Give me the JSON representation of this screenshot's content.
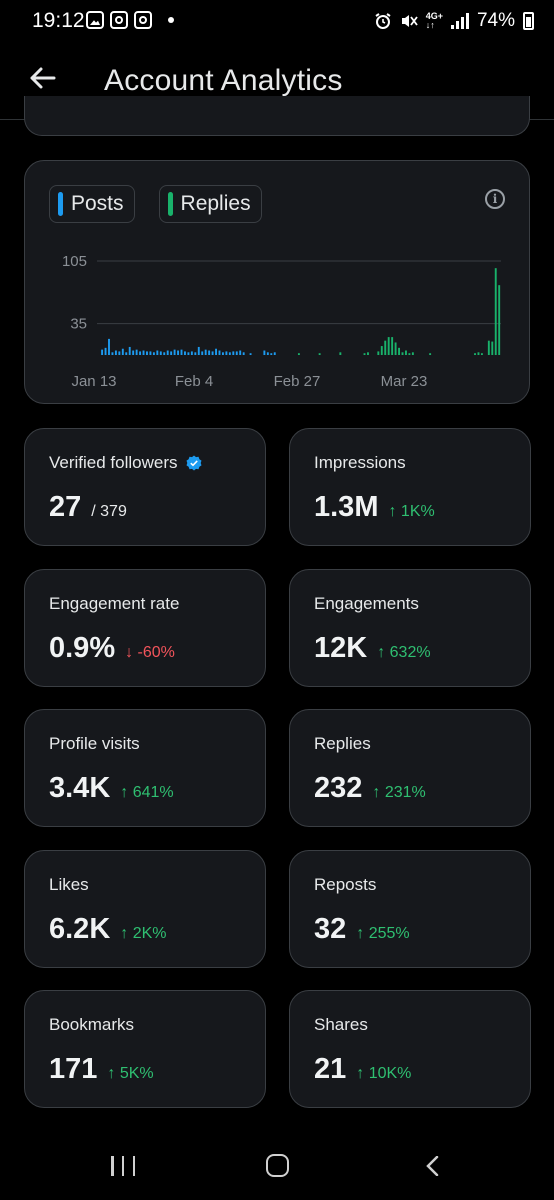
{
  "status_bar": {
    "time": "19:12",
    "network": "4G+",
    "battery": "74%",
    "icons": [
      "gallery-icon",
      "instagram-icon",
      "instagram-icon",
      "notification-dot",
      "alarm-icon",
      "mute-icon",
      "network-icon",
      "signal-icon",
      "battery-icon"
    ]
  },
  "header": {
    "title": "Account Analytics",
    "back_icon": "arrow-left-icon"
  },
  "chart": {
    "legend": [
      {
        "label": "Posts",
        "color": "#1d9bf0"
      },
      {
        "label": "Replies",
        "color": "#19b26b"
      }
    ],
    "info_icon": "info-icon",
    "info_glyph": "i"
  },
  "chart_data": {
    "type": "bar",
    "title": "",
    "xlabel": "",
    "ylabel": "",
    "ylim": [
      0,
      105
    ],
    "y_ticks": [
      "105",
      "35"
    ],
    "x_ticks": [
      "Jan 13",
      "Feb 4",
      "Feb 27",
      "Mar 23"
    ],
    "grid": true,
    "legend_position": "top-left",
    "x_start": "2024-01-09",
    "series": [
      {
        "name": "Posts",
        "color": "#1d9bf0",
        "values": [
          0,
          6,
          8,
          18,
          3,
          5,
          4,
          7,
          3,
          9,
          5,
          6,
          4,
          5,
          4,
          4,
          3,
          5,
          4,
          3,
          5,
          4,
          6,
          5,
          6,
          4,
          3,
          4,
          3,
          9,
          4,
          6,
          5,
          4,
          7,
          5,
          3,
          4,
          3,
          4,
          4,
          5,
          3,
          0,
          2,
          0,
          0,
          0,
          5,
          3,
          2,
          3,
          0,
          0,
          0,
          0,
          0,
          0,
          0,
          0,
          0,
          0,
          0,
          0,
          0,
          0,
          0,
          0,
          0,
          0,
          0,
          0,
          0,
          0,
          0,
          0,
          0,
          0,
          0,
          0,
          0,
          0,
          0,
          0,
          0,
          0,
          0,
          0,
          0,
          0,
          0,
          0,
          0,
          0,
          0,
          0,
          0,
          0,
          0,
          0,
          0
        ]
      },
      {
        "name": "Replies",
        "color": "#19b26b",
        "values": [
          0,
          0,
          0,
          0,
          0,
          0,
          0,
          0,
          0,
          0,
          0,
          0,
          0,
          0,
          0,
          0,
          0,
          0,
          0,
          0,
          0,
          0,
          0,
          0,
          0,
          0,
          0,
          0,
          0,
          0,
          0,
          0,
          0,
          0,
          0,
          0,
          0,
          0,
          0,
          0,
          0,
          0,
          0,
          0,
          0,
          0,
          0,
          0,
          0,
          0,
          0,
          0,
          0,
          0,
          0,
          0,
          0,
          0,
          2,
          0,
          0,
          0,
          0,
          0,
          2,
          0,
          0,
          0,
          0,
          0,
          3,
          0,
          0,
          0,
          0,
          0,
          0,
          2,
          3,
          0,
          0,
          4,
          10,
          16,
          20,
          20,
          14,
          8,
          3,
          5,
          2,
          3,
          0,
          0,
          0,
          0,
          2,
          0,
          0,
          0,
          0,
          0,
          0,
          0,
          0,
          0,
          0,
          0,
          0,
          2,
          3,
          2,
          0,
          16,
          15,
          97,
          78
        ]
      }
    ]
  },
  "stats": [
    {
      "label": "Verified followers",
      "value": "27",
      "sub": "/ 379",
      "change": "",
      "direction": "none",
      "badge": "verified-badge-icon"
    },
    {
      "label": "Impressions",
      "value": "1.3M",
      "change": "↑ 1K%",
      "direction": "up"
    },
    {
      "label": "Engagement rate",
      "value": "0.9%",
      "change": "↓ -60%",
      "direction": "down"
    },
    {
      "label": "Engagements",
      "value": "12K",
      "change": "↑ 632%",
      "direction": "up"
    },
    {
      "label": "Profile visits",
      "value": "3.4K",
      "change": "↑ 641%",
      "direction": "up"
    },
    {
      "label": "Replies",
      "value": "232",
      "change": "↑ 231%",
      "direction": "up"
    },
    {
      "label": "Likes",
      "value": "6.2K",
      "change": "↑ 2K%",
      "direction": "up"
    },
    {
      "label": "Reposts",
      "value": "32",
      "change": "↑ 255%",
      "direction": "up"
    },
    {
      "label": "Bookmarks",
      "value": "171",
      "change": "↑ 5K%",
      "direction": "up"
    },
    {
      "label": "Shares",
      "value": "21",
      "change": "↑ 10K%",
      "direction": "up"
    }
  ],
  "nav": {
    "recents_icon": "recents-icon",
    "home_icon": "home-icon",
    "back_icon": "back-icon"
  }
}
